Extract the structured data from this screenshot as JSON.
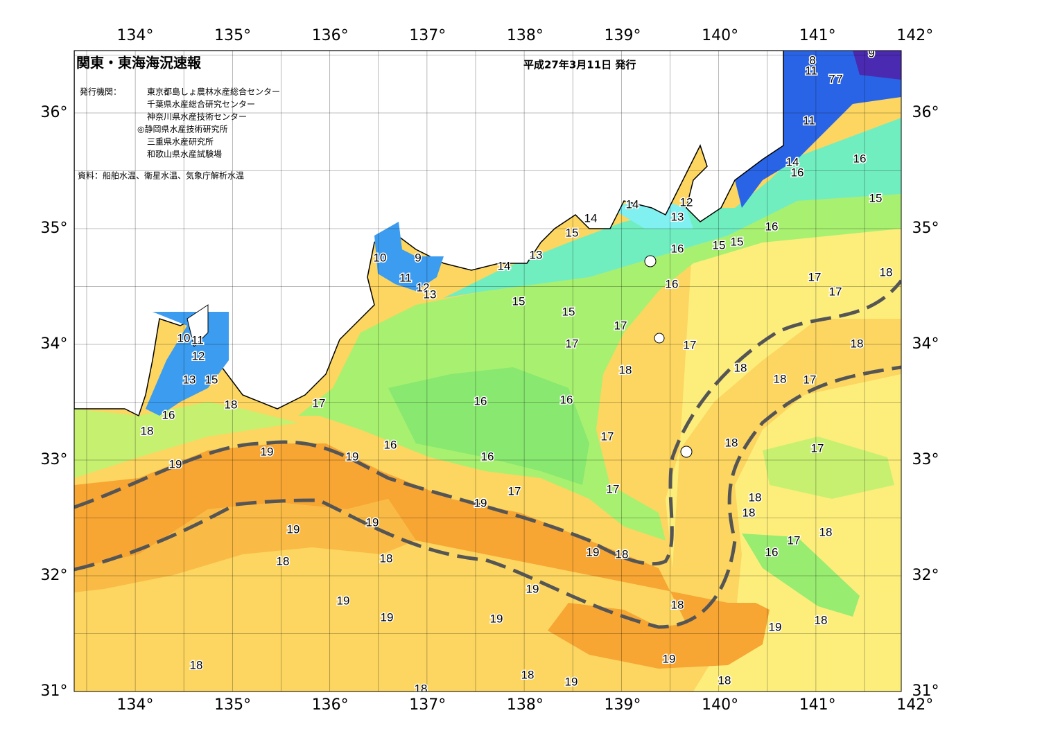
{
  "header": {
    "title": "関東・東海海況速報",
    "date": "平成27年3月11日 発行"
  },
  "issuers": {
    "label": "発行機関：",
    "items": [
      "東京都島しょ農林水産総合センター",
      "千葉県水産総合研究センター",
      "神奈川県水産技術センター",
      "◎静岡県水産技術研究所",
      "三重県水産研究所",
      "和歌山県水産試験場"
    ]
  },
  "source": "資料：船舶水温、衛星水温、気象庁解析水温",
  "axes": {
    "lon_labels": [
      "134°",
      "135°",
      "136°",
      "137°",
      "138°",
      "139°",
      "140°",
      "141°",
      "142°"
    ],
    "lat_labels": [
      "36°",
      "35°",
      "34°",
      "33°",
      "32°",
      "31°"
    ]
  },
  "contour_labels": [
    8,
    9,
    11,
    7,
    7,
    11,
    16,
    14,
    16,
    15,
    14,
    12,
    13,
    14,
    15,
    16,
    15,
    15,
    16,
    10,
    9,
    13,
    14,
    11,
    12,
    13,
    16,
    17,
    17,
    18,
    15,
    15,
    17,
    10,
    11,
    17,
    17,
    18,
    12,
    18,
    18,
    18,
    17,
    13,
    15,
    17,
    16,
    16,
    18,
    16,
    18,
    17,
    18,
    16,
    17,
    19,
    19,
    16,
    19,
    17,
    17,
    19,
    18,
    18,
    19,
    19,
    18,
    17,
    16,
    19,
    18,
    18,
    18,
    19,
    19,
    18,
    18,
    19,
    19,
    18,
    19,
    18,
    18,
    19,
    19,
    18
  ]
}
